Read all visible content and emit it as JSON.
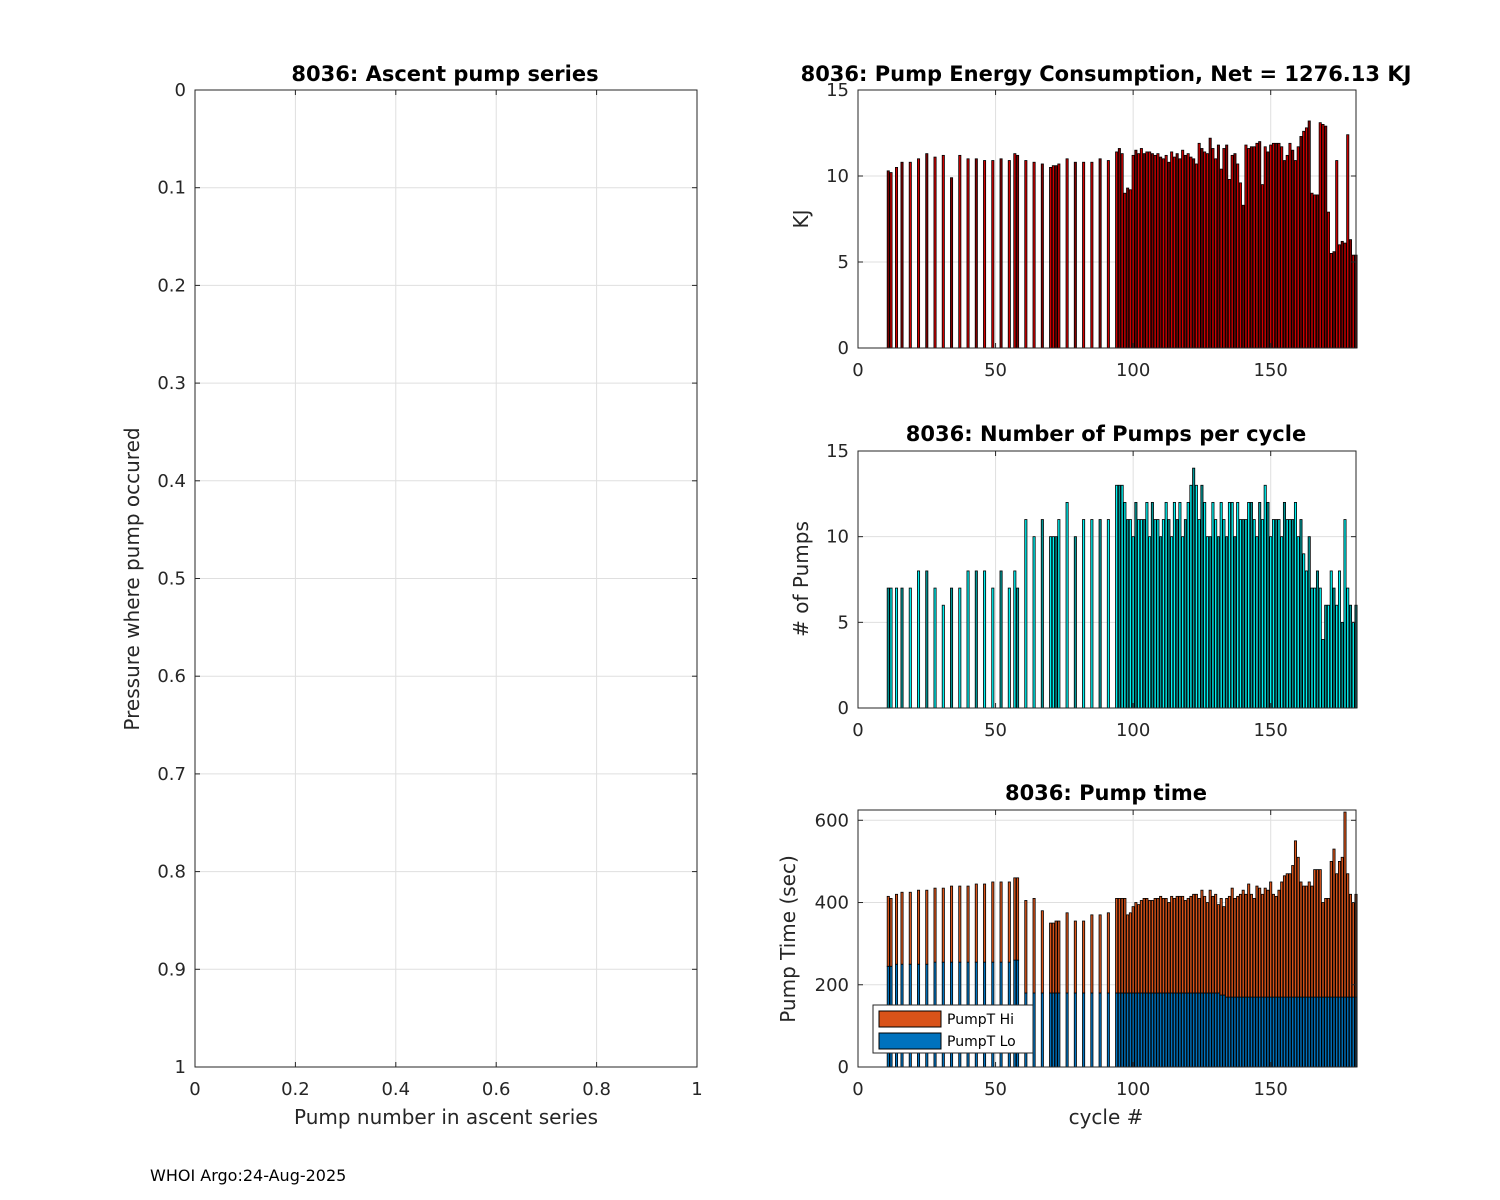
{
  "footer": "WHOI Argo:24-Aug-2025",
  "chart_data": [
    {
      "id": "ascent",
      "type": "line",
      "title": "8036: Ascent pump series",
      "xlabel": "Pump number in ascent series",
      "ylabel": "Pressure where pump occured",
      "xlim": [
        0,
        1
      ],
      "ylim": [
        0,
        1
      ],
      "y_reversed": true,
      "xticks": [
        0,
        0.2,
        0.4,
        0.6,
        0.8,
        1
      ],
      "xtick_labels": [
        "0",
        "0.2",
        "0.4",
        "0.6",
        "0.8",
        "1"
      ],
      "yticks": [
        0,
        0.1,
        0.2,
        0.3,
        0.4,
        0.5,
        0.6,
        0.7,
        0.8,
        0.9,
        1
      ],
      "ytick_labels": [
        "0",
        "0.1",
        "0.2",
        "0.3",
        "0.4",
        "0.5",
        "0.6",
        "0.7",
        "0.8",
        "0.9",
        "1"
      ],
      "grid": true,
      "series": []
    },
    {
      "id": "energy",
      "type": "bar",
      "title": "8036: Pump Energy Consumption,  Net = 1276.13 KJ",
      "xlabel": "",
      "ylabel": "KJ",
      "xlim": [
        0,
        181
      ],
      "ylim": [
        0,
        15
      ],
      "xticks": [
        0,
        50,
        100,
        150
      ],
      "xtick_labels": [
        "0",
        "50",
        "100",
        "150"
      ],
      "yticks": [
        0,
        5,
        10,
        15
      ],
      "ytick_labels": [
        "0",
        "5",
        "10",
        "15"
      ],
      "grid": true,
      "color": "#d00000",
      "x": [
        11,
        12,
        14,
        16,
        19,
        22,
        25,
        28,
        31,
        34,
        37,
        40,
        43,
        46,
        49,
        52,
        55,
        57,
        58,
        61,
        64,
        67,
        70,
        71,
        72,
        73,
        76,
        79,
        82,
        85,
        88,
        91,
        94,
        95,
        96,
        97,
        98,
        99,
        100,
        101,
        102,
        103,
        104,
        105,
        106,
        107,
        108,
        109,
        110,
        111,
        112,
        113,
        114,
        115,
        116,
        117,
        118,
        119,
        120,
        121,
        122,
        123,
        124,
        125,
        126,
        127,
        128,
        129,
        130,
        131,
        132,
        133,
        134,
        135,
        136,
        137,
        138,
        139,
        140,
        141,
        142,
        143,
        144,
        145,
        146,
        147,
        148,
        149,
        150,
        151,
        152,
        153,
        154,
        155,
        156,
        157,
        158,
        159,
        160,
        161,
        162,
        163,
        164,
        165,
        166,
        167,
        168,
        169,
        170,
        171,
        172,
        173,
        174,
        175,
        176,
        177,
        178,
        179,
        180,
        181
      ],
      "values": [
        10.3,
        10.2,
        10.5,
        10.8,
        10.8,
        11.0,
        11.3,
        11.1,
        11.2,
        9.9,
        11.2,
        11.0,
        11.0,
        10.9,
        10.9,
        11.0,
        10.9,
        11.3,
        11.2,
        10.9,
        10.8,
        10.7,
        10.5,
        10.6,
        10.6,
        10.7,
        11.0,
        10.8,
        10.8,
        10.8,
        11.0,
        10.9,
        11.4,
        11.6,
        11.3,
        9.0,
        9.3,
        9.2,
        11.2,
        11.5,
        11.3,
        11.6,
        11.3,
        11.4,
        11.4,
        11.3,
        11.2,
        11.3,
        11.1,
        11.0,
        11.2,
        10.8,
        11.4,
        11.1,
        11.3,
        11.0,
        11.5,
        11.2,
        11.3,
        11.1,
        11.0,
        10.7,
        11.9,
        11.6,
        11.4,
        11.3,
        12.2,
        11.6,
        11.0,
        11.8,
        10.4,
        11.6,
        11.8,
        9.8,
        11.2,
        11.3,
        10.7,
        9.6,
        8.3,
        11.8,
        11.6,
        11.7,
        11.7,
        11.9,
        12.0,
        9.5,
        11.7,
        11.4,
        11.8,
        11.9,
        11.9,
        11.9,
        11.7,
        10.9,
        11.2,
        11.9,
        11.5,
        10.9,
        11.7,
        12.3,
        12.6,
        12.8,
        13.2,
        9.0,
        8.9,
        8.9,
        13.1,
        13.0,
        12.9,
        7.9,
        5.5,
        5.6,
        10.9,
        6.0,
        6.2,
        6.1,
        12.4,
        6.3,
        5.4,
        5.4
      ],
      "series": []
    },
    {
      "id": "numpumps",
      "type": "bar",
      "title": "8036: Number of Pumps per cycle",
      "xlabel": "",
      "ylabel": "# of Pumps",
      "xlim": [
        0,
        181
      ],
      "ylim": [
        0,
        15
      ],
      "xticks": [
        0,
        50,
        100,
        150
      ],
      "xtick_labels": [
        "0",
        "50",
        "100",
        "150"
      ],
      "yticks": [
        0,
        5,
        10,
        15
      ],
      "ytick_labels": [
        "0",
        "5",
        "10",
        "15"
      ],
      "grid": true,
      "color": "#00f0f0",
      "x": [
        11,
        12,
        14,
        16,
        19,
        22,
        25,
        28,
        31,
        34,
        37,
        40,
        43,
        46,
        49,
        52,
        55,
        57,
        58,
        61,
        64,
        67,
        70,
        71,
        72,
        73,
        76,
        79,
        82,
        85,
        88,
        91,
        94,
        95,
        96,
        97,
        98,
        99,
        100,
        101,
        102,
        103,
        104,
        105,
        106,
        107,
        108,
        109,
        110,
        111,
        112,
        113,
        114,
        115,
        116,
        117,
        118,
        119,
        120,
        121,
        122,
        123,
        124,
        125,
        126,
        127,
        128,
        129,
        130,
        131,
        132,
        133,
        134,
        135,
        136,
        137,
        138,
        139,
        140,
        141,
        142,
        143,
        144,
        145,
        146,
        147,
        148,
        149,
        150,
        151,
        152,
        153,
        154,
        155,
        156,
        157,
        158,
        159,
        160,
        161,
        162,
        163,
        164,
        165,
        166,
        167,
        168,
        169,
        170,
        171,
        172,
        173,
        174,
        175,
        176,
        177,
        178,
        179,
        180,
        181
      ],
      "values": [
        7,
        7,
        7,
        7,
        7,
        8,
        8,
        7,
        6,
        7,
        7,
        8,
        8,
        8,
        7,
        8,
        7,
        8,
        7,
        11,
        10,
        11,
        10,
        10,
        10,
        11,
        12,
        10,
        11,
        11,
        11,
        11,
        13,
        13,
        13,
        12,
        11,
        11,
        10,
        12,
        11,
        11,
        11,
        12,
        10,
        12,
        11,
        11,
        10,
        11,
        12,
        11,
        10,
        12,
        11,
        12,
        10,
        11,
        12,
        13,
        14,
        13,
        11,
        13,
        12,
        10,
        10,
        12,
        11,
        10,
        12,
        11,
        10,
        12,
        12,
        10,
        12,
        11,
        11,
        11,
        12,
        12,
        11,
        10,
        12,
        11,
        13,
        12,
        10,
        11,
        11,
        11,
        10,
        12,
        11,
        11,
        11,
        12,
        10,
        11,
        9,
        8,
        10,
        7,
        7,
        8,
        7,
        4,
        6,
        6,
        8,
        7,
        6,
        8,
        5,
        11,
        7,
        6,
        5,
        6
      ],
      "series": []
    },
    {
      "id": "pumptime",
      "type": "bar",
      "title": "8036: Pump time",
      "xlabel": "cycle #",
      "ylabel": "Pump Time (sec)",
      "xlim": [
        0,
        181
      ],
      "ylim": [
        0,
        625
      ],
      "xticks": [
        0,
        50,
        100,
        150
      ],
      "xtick_labels": [
        "0",
        "50",
        "100",
        "150"
      ],
      "yticks": [
        0,
        200,
        400,
        600
      ],
      "ytick_labels": [
        "0",
        "200",
        "400",
        "600"
      ],
      "grid": true,
      "stacked": true,
      "legend": {
        "position": "bottom-left"
      },
      "x": [
        11,
        12,
        14,
        16,
        19,
        22,
        25,
        28,
        31,
        34,
        37,
        40,
        43,
        46,
        49,
        52,
        55,
        57,
        58,
        61,
        64,
        67,
        70,
        71,
        72,
        73,
        76,
        79,
        82,
        85,
        88,
        91,
        94,
        95,
        96,
        97,
        98,
        99,
        100,
        101,
        102,
        103,
        104,
        105,
        106,
        107,
        108,
        109,
        110,
        111,
        112,
        113,
        114,
        115,
        116,
        117,
        118,
        119,
        120,
        121,
        122,
        123,
        124,
        125,
        126,
        127,
        128,
        129,
        130,
        131,
        132,
        133,
        134,
        135,
        136,
        137,
        138,
        139,
        140,
        141,
        142,
        143,
        144,
        145,
        146,
        147,
        148,
        149,
        150,
        151,
        152,
        153,
        154,
        155,
        156,
        157,
        158,
        159,
        160,
        161,
        162,
        163,
        164,
        165,
        166,
        167,
        168,
        169,
        170,
        171,
        172,
        173,
        174,
        175,
        176,
        177,
        178,
        179,
        180,
        181
      ],
      "series": [
        {
          "name": "PumpT Lo",
          "color": "#0072bd",
          "values": [
            245,
            245,
            250,
            250,
            250,
            250,
            250,
            255,
            255,
            255,
            255,
            255,
            255,
            255,
            255,
            255,
            255,
            260,
            260,
            180,
            180,
            180,
            180,
            180,
            180,
            180,
            180,
            180,
            180,
            180,
            180,
            180,
            180,
            180,
            180,
            180,
            180,
            180,
            180,
            180,
            180,
            180,
            180,
            180,
            180,
            180,
            180,
            180,
            180,
            180,
            180,
            180,
            180,
            180,
            180,
            180,
            180,
            180,
            180,
            180,
            180,
            180,
            180,
            180,
            180,
            180,
            180,
            180,
            180,
            180,
            175,
            175,
            170,
            170,
            170,
            170,
            170,
            170,
            170,
            170,
            170,
            170,
            170,
            170,
            170,
            170,
            170,
            170,
            170,
            170,
            170,
            170,
            170,
            170,
            170,
            170,
            170,
            170,
            170,
            170,
            170,
            170,
            170,
            170,
            170,
            170,
            170,
            170,
            170,
            170,
            170,
            170,
            170,
            170,
            170,
            170,
            170,
            170,
            170,
            170
          ]
        },
        {
          "name": "PumpT Hi",
          "color": "#d95319",
          "values": [
            170,
            165,
            170,
            175,
            175,
            180,
            180,
            180,
            180,
            185,
            185,
            185,
            190,
            190,
            195,
            195,
            195,
            200,
            200,
            225,
            230,
            200,
            170,
            170,
            175,
            175,
            195,
            175,
            175,
            190,
            190,
            195,
            230,
            230,
            230,
            230,
            190,
            195,
            210,
            220,
            215,
            225,
            230,
            230,
            225,
            225,
            230,
            230,
            235,
            230,
            230,
            220,
            235,
            230,
            235,
            235,
            235,
            225,
            230,
            235,
            240,
            240,
            230,
            250,
            235,
            220,
            250,
            235,
            240,
            215,
            235,
            215,
            240,
            245,
            265,
            240,
            245,
            250,
            260,
            250,
            275,
            250,
            240,
            270,
            265,
            250,
            265,
            260,
            280,
            250,
            245,
            260,
            280,
            295,
            300,
            300,
            320,
            380,
            340,
            280,
            270,
            270,
            280,
            270,
            310,
            310,
            310,
            230,
            240,
            240,
            330,
            360,
            300,
            330,
            340,
            450,
            300,
            250,
            230,
            250
          ]
        }
      ]
    }
  ]
}
